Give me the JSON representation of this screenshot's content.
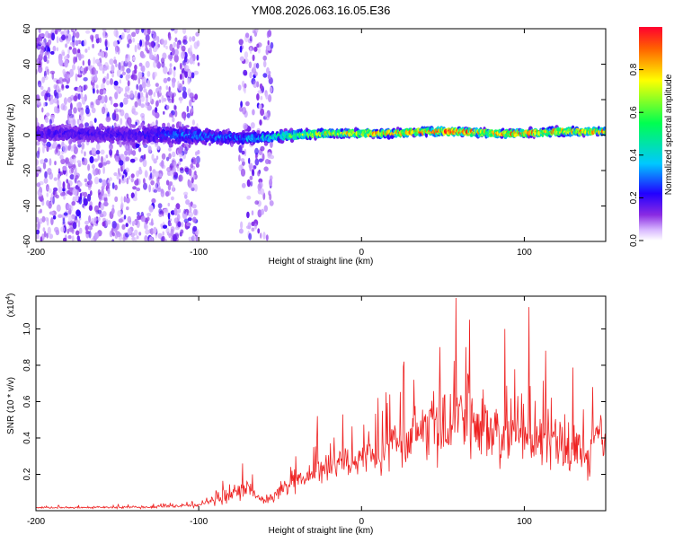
{
  "figure": {
    "title": "YM08.2026.063.16.05.E36"
  },
  "chart_data": [
    {
      "type": "heatmap",
      "title": "YM08.2026.063.16.05.E36",
      "xlabel": "Height of straight line (km)",
      "ylabel": "Frequency (Hz)",
      "xlim": [
        -200,
        150
      ],
      "ylim": [
        -60,
        60
      ],
      "xticks": [
        -200,
        -100,
        0,
        100
      ],
      "xtick_labels": [
        "-200",
        "-100",
        "0",
        "100"
      ],
      "yticks": [
        -60,
        -40,
        -20,
        0,
        20,
        40,
        60
      ],
      "ytick_labels": [
        "-60",
        "-40",
        "-20",
        "0",
        "20",
        "40",
        "60"
      ],
      "colorbar": {
        "label": "Normalized spectral amplitude",
        "range": [
          0,
          1
        ],
        "ticks": [
          0,
          0.2,
          0.4,
          0.6,
          0.8
        ],
        "tick_labels": [
          "0.0",
          "0.2",
          "0.4",
          "0.6",
          "0.8"
        ],
        "colors": [
          "#ffffff",
          "#d8b8ff",
          "#8a2be2",
          "#2200ff",
          "#00c8ff",
          "#00ff50",
          "#ffff00",
          "#ff2000"
        ]
      },
      "ridge": {
        "x": [
          -200,
          -170,
          -140,
          -110,
          -90,
          -70,
          -55,
          -40,
          -20,
          0,
          20,
          40,
          60,
          80,
          100,
          120,
          150
        ],
        "center": [
          1,
          1,
          0,
          0,
          -1,
          -2,
          -1,
          0,
          1,
          1,
          1,
          2,
          2,
          1,
          1,
          2,
          2
        ],
        "halfwidth": [
          6,
          7,
          8,
          8,
          6,
          5,
          5,
          4,
          3,
          3,
          3,
          3,
          3,
          3,
          3,
          3,
          3
        ],
        "peak": [
          0.35,
          0.35,
          0.35,
          0.45,
          0.45,
          0.5,
          0.55,
          0.7,
          0.8,
          0.8,
          0.85,
          0.9,
          0.95,
          0.85,
          0.9,
          0.85,
          0.85
        ]
      },
      "noise_regions": [
        {
          "x_range": [
            -200,
            -100
          ],
          "freq_range": [
            -60,
            60
          ],
          "density": 1.0
        },
        {
          "x_range": [
            -75,
            -55
          ],
          "freq_range": [
            -60,
            60
          ],
          "density": 0.6
        }
      ]
    },
    {
      "type": "line",
      "xlabel": "Height of straight line (km)",
      "ylabel": "SNR (10 * v/v)",
      "multiplier_label": "(x10",
      "multiplier_exponent": "4",
      "multiplier_close": ")",
      "xlim": [
        -200,
        150
      ],
      "ylim": [
        0,
        1.18
      ],
      "xticks": [
        -200,
        -100,
        0,
        100
      ],
      "xtick_labels": [
        "-200",
        "-100",
        "0",
        "100"
      ],
      "yticks": [
        0.2,
        0.4,
        0.6,
        0.8,
        1.0
      ],
      "ytick_labels": [
        "0.2",
        "0.4",
        "0.6",
        "0.8",
        "1.0"
      ],
      "series": [
        {
          "name": "SNR",
          "color": "#ee2222",
          "envelope_x": [
            -200,
            -130,
            -100,
            -90,
            -80,
            -70,
            -60,
            -50,
            -40,
            -30,
            -20,
            -10,
            0,
            10,
            20,
            30,
            40,
            50,
            60,
            70,
            80,
            90,
            100,
            110,
            120,
            130,
            140,
            145,
            150
          ],
          "envelope_base": [
            0.015,
            0.02,
            0.03,
            0.06,
            0.1,
            0.12,
            0.05,
            0.1,
            0.16,
            0.2,
            0.24,
            0.27,
            0.3,
            0.3,
            0.36,
            0.4,
            0.42,
            0.45,
            0.45,
            0.45,
            0.42,
            0.42,
            0.4,
            0.4,
            0.38,
            0.35,
            0.3,
            0.45,
            0.3
          ],
          "envelope_amp": [
            0.01,
            0.015,
            0.02,
            0.06,
            0.12,
            0.12,
            0.04,
            0.1,
            0.16,
            0.16,
            0.18,
            0.18,
            0.18,
            0.22,
            0.28,
            0.34,
            0.38,
            0.45,
            0.45,
            0.45,
            0.42,
            0.4,
            0.38,
            0.38,
            0.35,
            0.33,
            0.3,
            0.2,
            0.1
          ],
          "peaks": [
            {
              "x": -73,
              "y": 0.26
            },
            {
              "x": -27,
              "y": 0.52
            },
            {
              "x": 26,
              "y": 0.82
            },
            {
              "x": 32,
              "y": 0.72
            },
            {
              "x": 48,
              "y": 0.9
            },
            {
              "x": 58,
              "y": 1.17
            },
            {
              "x": 64,
              "y": 0.9
            },
            {
              "x": 88,
              "y": 1.0
            },
            {
              "x": 103,
              "y": 1.12
            },
            {
              "x": 113,
              "y": 0.88
            },
            {
              "x": 142,
              "y": 0.68
            }
          ]
        }
      ]
    }
  ]
}
